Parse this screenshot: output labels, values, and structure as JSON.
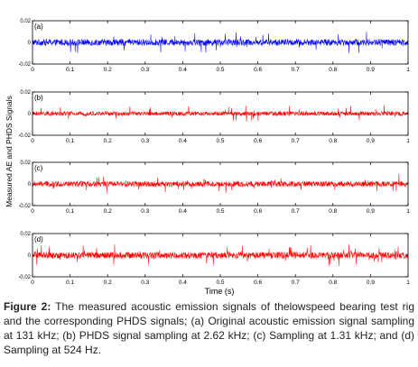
{
  "figure": {
    "ylabel": "Measured AE and PHDS Signals",
    "xlabel": "Time   (s)",
    "caption_label": "Figure 2:",
    "caption_text": "The measured acoustic emission signals of thelowspeed bearing test rig and the corresponding PHDS signals; (a) Original acoustic emission signal sampling at 131 kHz; (b) PHDS signal sampling at 2.62 kHz; (c) Sampling at 1.31 kHz; and (d) Sampling at 524 Hz."
  },
  "chart_data": [
    {
      "type": "line",
      "panel_label": "(a)",
      "color": "#0000ff",
      "xlim": [
        0,
        1
      ],
      "ylim": [
        -0.02,
        0.02
      ],
      "x_ticks": [
        "0",
        "0.1",
        "0.2",
        "0.3",
        "0.4",
        "0.5",
        "0.6",
        "0.7",
        "0.8",
        "0.9",
        "1"
      ],
      "y_ticks": [
        "0.02",
        "0",
        "-0.02"
      ],
      "typical_amplitude": 0.003,
      "peak_amplitude": 0.01,
      "grid": false
    },
    {
      "type": "line",
      "panel_label": "(b)",
      "color": "#ff0000",
      "xlim": [
        0,
        1
      ],
      "ylim": [
        -0.02,
        0.02
      ],
      "x_ticks": [
        "0",
        "0.1",
        "0.2",
        "0.3",
        "0.4",
        "0.5",
        "0.6",
        "0.7",
        "0.8",
        "0.9",
        "1"
      ],
      "y_ticks": [
        "0.02",
        "0",
        "-0.02"
      ],
      "typical_amplitude": 0.002,
      "peak_amplitude": 0.008,
      "grid": false
    },
    {
      "type": "line",
      "panel_label": "(c)",
      "color": "#ff0000",
      "xlim": [
        0,
        1
      ],
      "ylim": [
        -0.02,
        0.02
      ],
      "x_ticks": [
        "0",
        "0.1",
        "0.2",
        "0.3",
        "0.4",
        "0.5",
        "0.6",
        "0.7",
        "0.8",
        "0.9",
        "1"
      ],
      "y_ticks": [
        "0.02",
        "0",
        "-0.02"
      ],
      "typical_amplitude": 0.0025,
      "peak_amplitude": 0.009,
      "grid": false
    },
    {
      "type": "line",
      "panel_label": "(d)",
      "color": "#ff0000",
      "xlim": [
        0,
        1
      ],
      "ylim": [
        -0.02,
        0.02
      ],
      "x_ticks": [
        "0",
        "0.1",
        "0.2",
        "0.3",
        "0.4",
        "0.5",
        "0.6",
        "0.7",
        "0.8",
        "0.9",
        "1"
      ],
      "y_ticks": [
        "0.02",
        "0",
        "-0.02"
      ],
      "typical_amplitude": 0.003,
      "peak_amplitude": 0.01,
      "grid": false
    }
  ]
}
